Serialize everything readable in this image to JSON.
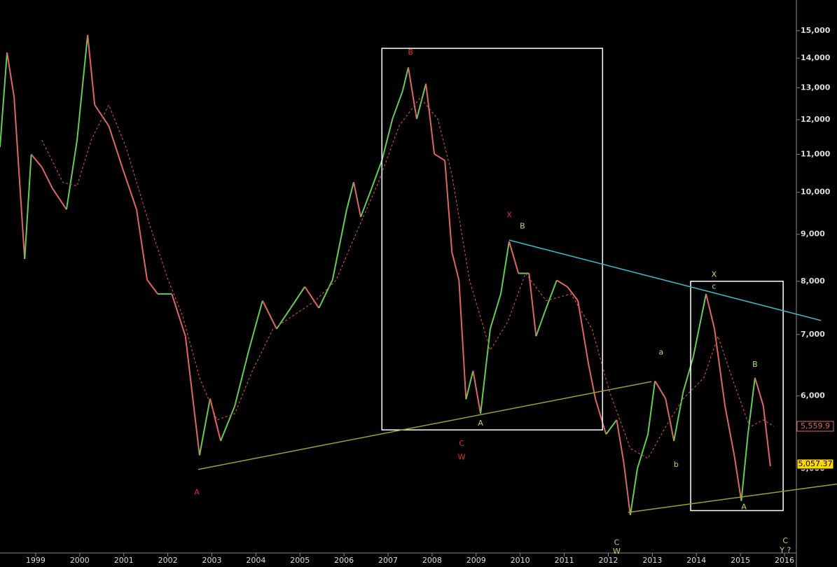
{
  "chart_data": {
    "type": "line",
    "xlim": [
      1998.19,
      2016.27
    ],
    "xticks": [
      1999,
      2000,
      2001,
      2002,
      2003,
      2004,
      2005,
      2006,
      2007,
      2008,
      2009,
      2010,
      2011,
      2012,
      2013,
      2014,
      2015,
      2016
    ],
    "ylim": [
      4046,
      16200
    ],
    "log_scale": true,
    "yticks": [
      {
        "value": 5000,
        "label": "5,000"
      },
      {
        "value": 6000,
        "label": "6,000"
      },
      {
        "value": 7000,
        "label": "7,000"
      },
      {
        "value": 8000,
        "label": "8,000"
      },
      {
        "value": 9000,
        "label": "9,000"
      },
      {
        "value": 10000,
        "label": "10,000"
      },
      {
        "value": 11000,
        "label": "11,000"
      },
      {
        "value": 12000,
        "label": "12,000"
      },
      {
        "value": 13000,
        "label": "13,000"
      },
      {
        "value": 14000,
        "label": "14,000"
      },
      {
        "value": 15000,
        "label": "15,000"
      }
    ],
    "series": [
      {
        "color_up": "#66cc55",
        "color_down": "#e06666",
        "style": "solid",
        "x": [
          1998.19,
          1998.35,
          1998.51,
          1998.75,
          1998.9,
          1999.14,
          1999.38,
          1999.7,
          1999.94,
          2000.18,
          2000.34,
          2000.66,
          2000.97,
          2001.29,
          2001.53,
          2001.77,
          2002.09,
          2002.4,
          2002.72,
          2002.96,
          2003.2,
          2003.52,
          2003.84,
          2004.15,
          2004.47,
          2004.79,
          2005.11,
          2005.43,
          2005.74,
          2006.06,
          2006.22,
          2006.38,
          2006.62,
          2006.86,
          2007.1,
          2007.33,
          2007.46,
          2007.65,
          2007.86,
          2008.05,
          2008.29,
          2008.45,
          2008.61,
          2008.77,
          2008.93,
          2009.1,
          2009.32,
          2009.56,
          2009.75,
          2009.96,
          2010.2,
          2010.36,
          2010.59,
          2010.83,
          2011.07,
          2011.31,
          2011.55,
          2011.71,
          2011.95,
          2012.19,
          2012.35,
          2012.5,
          2012.66,
          2012.9,
          2013.06,
          2013.3,
          2013.49,
          2013.7,
          2013.93,
          2014.22,
          2014.41,
          2014.65,
          2014.86,
          2015.02,
          2015.17,
          2015.33,
          2015.52,
          2015.68
        ],
        "values": [
          11200,
          14200,
          12700,
          8460,
          11000,
          10650,
          10100,
          9580,
          11400,
          14840,
          12450,
          11810,
          10630,
          9580,
          8030,
          7750,
          7750,
          6970,
          5170,
          5960,
          5360,
          5850,
          6730,
          7620,
          7100,
          7480,
          7890,
          7480,
          8030,
          9570,
          10260,
          9400,
          10080,
          10830,
          12020,
          12890,
          13680,
          12020,
          13130,
          11010,
          10830,
          8610,
          8020,
          5950,
          6390,
          5740,
          7100,
          7750,
          8840,
          8160,
          8160,
          6970,
          7480,
          8020,
          7890,
          7620,
          6500,
          5950,
          5450,
          5650,
          5080,
          4450,
          5000,
          5450,
          6230,
          5960,
          5360,
          6060,
          6620,
          7750,
          7100,
          5850,
          5170,
          4610,
          5450,
          6280,
          5850,
          5030
        ]
      },
      {
        "color": "#c84a4a",
        "style": "dashed",
        "x": [
          1999.14,
          1999.62,
          1999.94,
          2000.26,
          2000.66,
          2001.05,
          2001.53,
          2002.01,
          2002.33,
          2002.72,
          2003.12,
          2003.52,
          2003.92,
          2004.39,
          2004.87,
          2005.35,
          2005.82,
          2006.3,
          2006.78,
          2007.25,
          2007.73,
          2008.13,
          2008.45,
          2008.85,
          2009.32,
          2009.72,
          2010.12,
          2010.59,
          2011.15,
          2011.63,
          2012.03,
          2012.5,
          2012.9,
          2013.3,
          2013.7,
          2014.17,
          2014.49,
          2014.81,
          2015.21,
          2015.52,
          2015.76
        ],
        "values": [
          11400,
          10250,
          10160,
          11400,
          12450,
          11200,
          9400,
          8020,
          7350,
          6280,
          5650,
          5740,
          6390,
          7100,
          7350,
          7620,
          8020,
          9080,
          10250,
          11810,
          12680,
          12020,
          10450,
          8020,
          6730,
          7230,
          8160,
          7620,
          7750,
          7100,
          6060,
          5260,
          5130,
          5550,
          5960,
          6280,
          6970,
          6280,
          5550,
          5650,
          5560
        ]
      }
    ],
    "price_labels": [
      {
        "value": 5559.9,
        "label": "5,559.9",
        "color": "#e06666",
        "background": "#000000"
      },
      {
        "value": 5057.37,
        "label": "5,057.37",
        "color": "#000000",
        "background": "#ffd700"
      }
    ],
    "boxes": [
      {
        "x": [
          2006.86,
          2011.87
        ],
        "y": [
          5510,
          14350
        ],
        "color": "#ffffff"
      },
      {
        "x": [
          2013.87,
          2015.97
        ],
        "y": [
          4500,
          8000
        ],
        "color": "#ffffff"
      }
    ],
    "trendlines": [
      {
        "x": [
          2002.69,
          2012.98
        ],
        "y": [
          4990,
          6220
        ],
        "color": "#a0a030"
      },
      {
        "x": [
          2012.45,
          2017.19
        ],
        "y": [
          4480,
          4810
        ],
        "color": "#a0a030"
      },
      {
        "x": [
          2009.75,
          2016.83
        ],
        "y": [
          8870,
          7250
        ],
        "color": "#3bb8c8"
      }
    ],
    "annotations": [
      {
        "text": "A",
        "x": 2002.66,
        "y": 4710,
        "color": "#e03030"
      },
      {
        "text": "B",
        "x": 2007.51,
        "y": 14200,
        "color": "#e03030"
      },
      {
        "text": "X",
        "x": 2009.75,
        "y": 9440,
        "color": "#e03030"
      },
      {
        "text": "B",
        "x": 2010.05,
        "y": 9180,
        "color": "#a8e070"
      },
      {
        "text": "A",
        "x": 2009.1,
        "y": 5600,
        "color": "#a8e070"
      },
      {
        "text": "C",
        "x": 2008.67,
        "y": 5320,
        "color": "#e03030"
      },
      {
        "text": "W",
        "x": 2008.67,
        "y": 5140,
        "color": "#e03030"
      },
      {
        "text": "a",
        "x": 2013.2,
        "y": 6690,
        "color": "#a8e070"
      },
      {
        "text": "b",
        "x": 2013.54,
        "y": 5050,
        "color": "#a8e070"
      },
      {
        "text": "X",
        "x": 2014.4,
        "y": 8130,
        "color": "#a8e070"
      },
      {
        "text": "c",
        "x": 2014.4,
        "y": 7890,
        "color": "#a8e070"
      },
      {
        "text": "B",
        "x": 2015.33,
        "y": 6490,
        "color": "#a8e070"
      },
      {
        "text": "A",
        "x": 2015.08,
        "y": 4540,
        "color": "#a8e070"
      },
      {
        "text": "C",
        "x": 2012.19,
        "y": 4150,
        "color": "#a8e070"
      },
      {
        "text": "W",
        "x": 2012.19,
        "y": 4060,
        "color": "#a8e070"
      },
      {
        "text": "C",
        "x": 2016.02,
        "y": 4170,
        "color": "#a8e070"
      },
      {
        "text": "Y ?",
        "x": 2016.02,
        "y": 4070,
        "color": "#a8e070"
      }
    ]
  }
}
